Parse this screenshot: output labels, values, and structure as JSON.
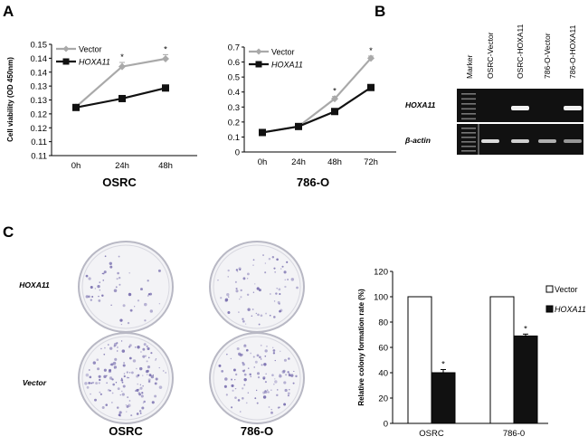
{
  "panel_labels": {
    "a": "A",
    "b": "B",
    "c": "C"
  },
  "colors": {
    "vector": "#a9a9a9",
    "hoxa11": "#111111",
    "gel_bg": "#111111",
    "gel_band": "#f2f2f2",
    "colony": "#6a5fa6"
  },
  "chart_data": [
    {
      "type": "line",
      "caption": "OSRC",
      "ylabel": "Cell viability (OD 450nm)",
      "categories": [
        "0h",
        "24h",
        "48h"
      ],
      "ylim": [
        0.11,
        0.15
      ],
      "yticks": [
        "0.15",
        "0.14",
        "0.14",
        "0.13",
        "0.13",
        "0.12",
        "0.12",
        "0.11",
        "0.11"
      ],
      "series": [
        {
          "name": "Vector",
          "values": [
            0.1275,
            0.142,
            0.1448
          ],
          "error": [
            0,
            0.0015,
            0.0015
          ],
          "marks": [
            "",
            "*",
            "*"
          ]
        },
        {
          "name": "HOXA11",
          "values": [
            0.1273,
            0.1305,
            0.1343
          ]
        }
      ]
    },
    {
      "type": "line",
      "caption": "786-O",
      "categories": [
        "0h",
        "24h",
        "48h",
        "72h"
      ],
      "ylim": [
        0,
        0.7
      ],
      "yticks": [
        "0.7",
        "0.6",
        "0.5",
        "0.4",
        "0.3",
        "0.2",
        "0.1",
        "0"
      ],
      "series": [
        {
          "name": "Vector",
          "values": [
            0.13,
            0.17,
            0.355,
            0.625
          ],
          "error": [
            0,
            0,
            0.015,
            0.015
          ],
          "marks": [
            "",
            "",
            "*",
            "*"
          ]
        },
        {
          "name": "HOXA11",
          "values": [
            0.13,
            0.17,
            0.27,
            0.43
          ]
        }
      ]
    },
    {
      "type": "bar",
      "ylabel": "Relative colony formation rate (%)",
      "categories": [
        "OSRC",
        "786-0"
      ],
      "ylim": [
        0,
        120
      ],
      "yticks": [
        "120",
        "100",
        "80",
        "60",
        "40",
        "20",
        "0"
      ],
      "series": [
        {
          "name": "Vector",
          "values": [
            100,
            100
          ]
        },
        {
          "name": "HOXA11",
          "values": [
            40,
            69
          ],
          "error": [
            2.5,
            1.5
          ],
          "marks": [
            "*",
            "*"
          ]
        }
      ]
    }
  ],
  "gel": {
    "lanes": [
      "Marker",
      "OSRC-Vector",
      "OSRC-HOXA11",
      "786-O-Vector",
      "786-O-HOXA11"
    ],
    "rows": [
      "HOXA11",
      "β-actin"
    ],
    "hoxa11_band_levels": [
      0,
      1,
      0,
      1
    ],
    "actin_band_levels": [
      0.9,
      0.85,
      0.7,
      0.6
    ]
  },
  "colony": {
    "row_labels": [
      "HOXA11",
      "Vector"
    ],
    "captions": [
      "OSRC",
      "786-O"
    ]
  }
}
